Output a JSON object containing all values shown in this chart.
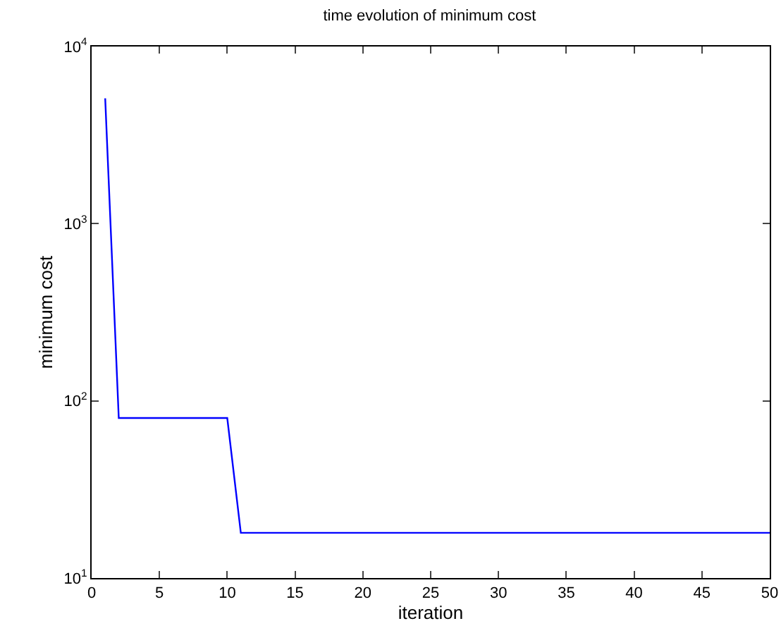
{
  "chart_data": {
    "type": "line",
    "title": "time evolution of minimum cost",
    "xlabel": "iteration",
    "ylabel": "minimum cost",
    "x": [
      1,
      2,
      10,
      11,
      50
    ],
    "series": [
      {
        "color": "#0000ff",
        "values": [
          5100,
          80,
          80,
          18,
          18
        ]
      }
    ],
    "xlim": [
      0,
      50
    ],
    "xticks": [
      0,
      5,
      10,
      15,
      20,
      25,
      30,
      35,
      40,
      45,
      50
    ],
    "ylim": [
      10,
      10000
    ],
    "yticks": [
      {
        "value": 10,
        "label": "10$^{1}$"
      },
      {
        "value": 100,
        "label": "10$^{2}$"
      },
      {
        "value": 1000,
        "label": "10$^{3}$"
      },
      {
        "value": 10000,
        "label": "10$^{4}$"
      }
    ],
    "log": "y",
    "grid": false,
    "marker": "none",
    "line_style": "solid"
  }
}
